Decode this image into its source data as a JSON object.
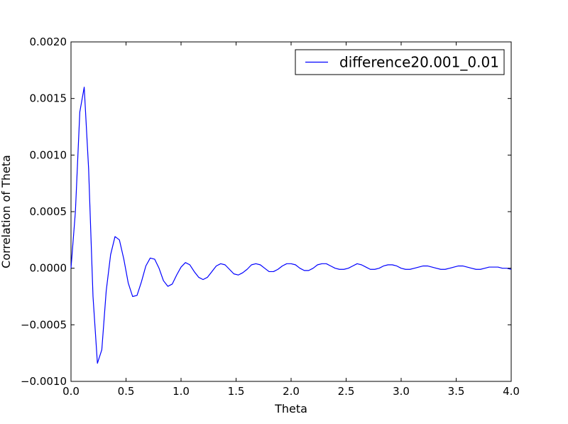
{
  "chart_data": {
    "type": "line",
    "xlabel": "Theta",
    "ylabel": "Correlation of Theta",
    "xlim": [
      0.0,
      4.0
    ],
    "ylim": [
      -0.001,
      0.002
    ],
    "xticks": [
      0.0,
      0.5,
      1.0,
      1.5,
      2.0,
      2.5,
      3.0,
      3.5,
      4.0
    ],
    "xtick_labels": [
      "0.0",
      "0.5",
      "1.0",
      "1.5",
      "2.0",
      "2.5",
      "3.0",
      "3.5",
      "4.0"
    ],
    "yticks": [
      -0.001,
      -0.0005,
      0.0,
      0.0005,
      0.001,
      0.0015,
      0.002
    ],
    "ytick_labels": [
      "−0.0010",
      "−0.0005",
      "0.0000",
      "0.0005",
      "0.0010",
      "0.0015",
      "0.0020"
    ],
    "grid": false,
    "legend_position": "top-right",
    "line_color": "#0000ff",
    "series": [
      {
        "name": "difference20.001_0.01",
        "x": [
          0.0,
          0.04,
          0.08,
          0.12,
          0.16,
          0.2,
          0.24,
          0.28,
          0.32,
          0.36,
          0.4,
          0.44,
          0.48,
          0.52,
          0.56,
          0.6,
          0.64,
          0.68,
          0.72,
          0.76,
          0.8,
          0.84,
          0.88,
          0.92,
          0.96,
          1.0,
          1.04,
          1.08,
          1.12,
          1.16,
          1.2,
          1.24,
          1.28,
          1.32,
          1.36,
          1.4,
          1.44,
          1.48,
          1.52,
          1.56,
          1.6,
          1.64,
          1.68,
          1.72,
          1.76,
          1.8,
          1.84,
          1.88,
          1.92,
          1.96,
          2.0,
          2.04,
          2.08,
          2.12,
          2.16,
          2.2,
          2.24,
          2.28,
          2.32,
          2.36,
          2.4,
          2.44,
          2.48,
          2.52,
          2.56,
          2.6,
          2.64,
          2.68,
          2.72,
          2.76,
          2.8,
          2.84,
          2.88,
          2.92,
          2.96,
          3.0,
          3.04,
          3.08,
          3.12,
          3.16,
          3.2,
          3.24,
          3.28,
          3.32,
          3.36,
          3.4,
          3.44,
          3.48,
          3.52,
          3.56,
          3.6,
          3.64,
          3.68,
          3.72,
          3.76,
          3.8,
          3.84,
          3.88,
          3.92,
          3.96,
          4.0
        ],
        "y": [
          0.0,
          0.0005,
          0.00138,
          0.0016,
          0.00088,
          -0.00025,
          -0.00084,
          -0.00072,
          -0.0002,
          0.00012,
          0.00028,
          0.00025,
          8e-05,
          -0.00013,
          -0.00025,
          -0.00024,
          -0.00012,
          2e-05,
          9e-05,
          8e-05,
          0.0,
          -0.00011,
          -0.00016,
          -0.00014,
          -6e-05,
          1e-05,
          5e-05,
          3e-05,
          -3e-05,
          -8e-05,
          -0.0001,
          -8e-05,
          -3e-05,
          2e-05,
          4e-05,
          3e-05,
          -1e-05,
          -5e-05,
          -6e-05,
          -4e-05,
          -1e-05,
          3e-05,
          4e-05,
          3e-05,
          0.0,
          -3e-05,
          -3e-05,
          -1e-05,
          2e-05,
          4e-05,
          4e-05,
          3e-05,
          0.0,
          -2e-05,
          -2e-05,
          0.0,
          3e-05,
          4e-05,
          4e-05,
          2e-05,
          0.0,
          -1e-05,
          -1e-05,
          0.0,
          2e-05,
          4e-05,
          3e-05,
          1e-05,
          -1e-05,
          -1e-05,
          0.0,
          2e-05,
          3e-05,
          3e-05,
          2e-05,
          0.0,
          -1e-05,
          -1e-05,
          0.0,
          1e-05,
          2e-05,
          2e-05,
          1e-05,
          0.0,
          -1e-05,
          -1e-05,
          0.0,
          1e-05,
          2e-05,
          2e-05,
          1e-05,
          0.0,
          -1e-05,
          -1e-05,
          0.0,
          1e-05,
          1e-05,
          1e-05,
          0.0,
          0.0,
          -1e-05
        ]
      }
    ]
  }
}
